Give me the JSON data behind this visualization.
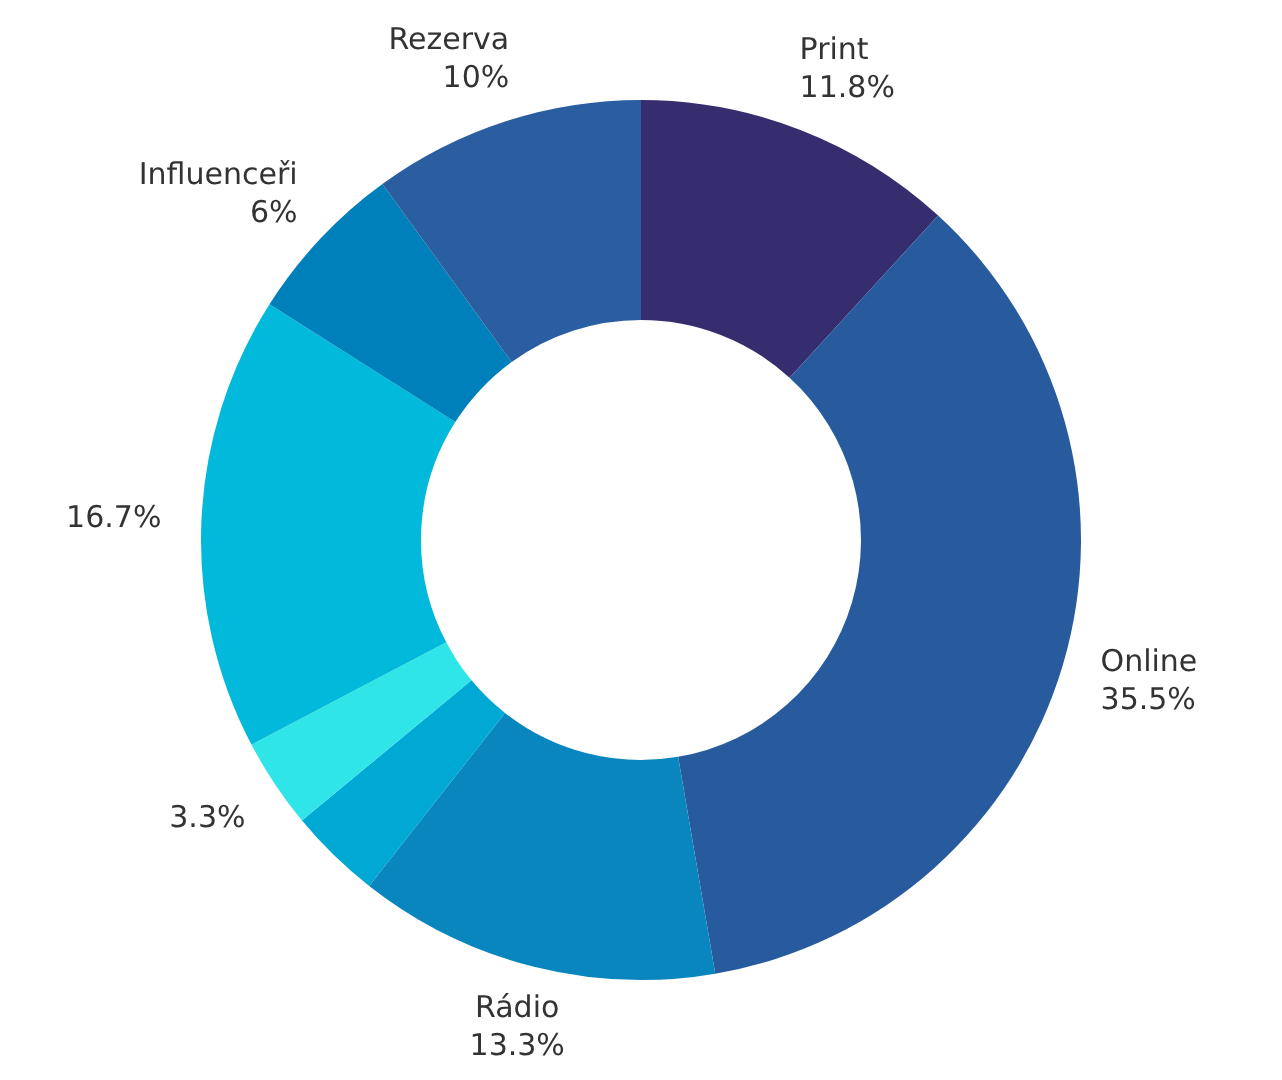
{
  "chart_data": {
    "type": "donut",
    "categories": [
      "Print",
      "Online",
      "Rádio",
      null,
      null,
      null,
      "Influenceři",
      "Rezerva"
    ],
    "values": [
      11.8,
      35.5,
      13.3,
      3.4,
      3.3,
      16.7,
      6,
      10
    ],
    "value_labels": [
      "11.8%",
      "35.5%",
      "13.3%",
      null,
      "3.3%",
      "16.7%",
      "6%",
      "10%"
    ],
    "colors": [
      "#352d6e",
      "#285b9e",
      "#0a86bf",
      "#00a9d4",
      "#2fe5e8",
      "#00b9db",
      "#0080bb",
      "#2a5ea0"
    ],
    "legend": false
  }
}
